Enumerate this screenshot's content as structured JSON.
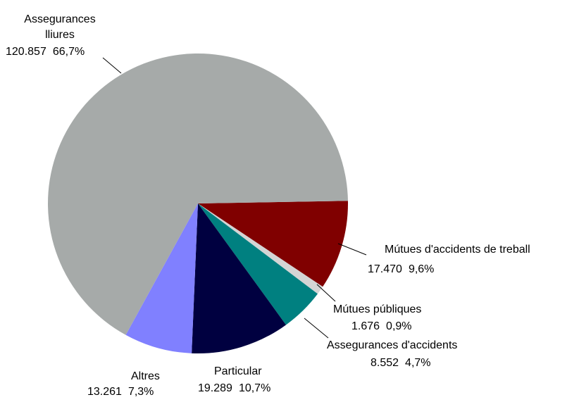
{
  "chart_data": {
    "type": "pie",
    "categories": [
      "Mútues d'accidents de treball",
      "Mútues públiques",
      "Assegurances d'accidents",
      "Particular",
      "Altres",
      "Assegurances lliures"
    ],
    "values": [
      17470,
      1676,
      8552,
      19289,
      13261,
      120857
    ],
    "value_labels": [
      "17.470",
      "1.676",
      "8.552",
      "19.289",
      "13.261",
      "120.857"
    ],
    "percent_labels": [
      "9,6%",
      "0,9%",
      "4,7%",
      "10,7%",
      "7,3%",
      "66,7%"
    ],
    "colors": [
      "#800000",
      "#d4d4d4",
      "#008080",
      "#000040",
      "#8080ff",
      "#a6aaa9"
    ]
  }
}
